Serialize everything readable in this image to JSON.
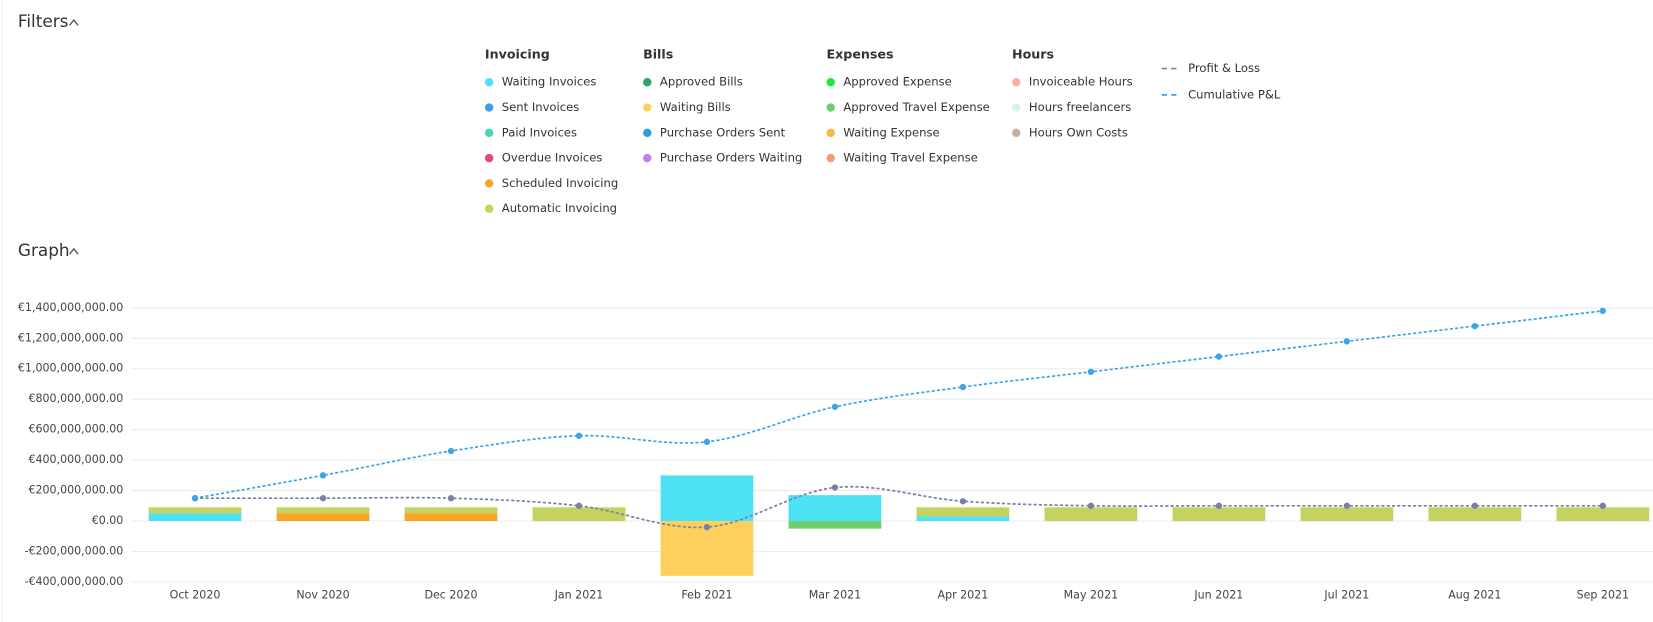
{
  "filters_title": "Filters",
  "graph_title": "Graph",
  "chart_data": {
    "type": "bar",
    "categories": [
      "Oct 2020",
      "Nov 2020",
      "Dec 2020",
      "Jan 2021",
      "Feb 2021",
      "Mar 2021",
      "Apr 2021",
      "May 2021",
      "Jun 2021",
      "Jul 2021",
      "Aug 2021",
      "Sep 2021"
    ],
    "ylim": [
      -400000000,
      1400000000
    ],
    "yticks": [
      {
        "value": -400000000,
        "label": "-€400,000,000.00"
      },
      {
        "value": -200000000,
        "label": "-€200,000,000.00"
      },
      {
        "value": 0,
        "label": "€0.00"
      },
      {
        "value": 200000000,
        "label": "€200,000,000.00"
      },
      {
        "value": 400000000,
        "label": "€400,000,000.00"
      },
      {
        "value": 600000000,
        "label": "€600,000,000.00"
      },
      {
        "value": 800000000,
        "label": "€800,000,000.00"
      },
      {
        "value": 1000000000,
        "label": "€1,000,000,000.00"
      },
      {
        "value": 1200000000,
        "label": "€1,200,000,000.00"
      },
      {
        "value": 1400000000,
        "label": "€1,400,000,000.00"
      }
    ],
    "grid": true,
    "legend_groups": [
      {
        "title": "Invoicing",
        "series": [
          {
            "name": "Waiting Invoices",
            "color": "#4de3f5",
            "values": [
              50000000,
              0,
              0,
              0,
              300000000,
              170000000,
              30000000,
              0,
              0,
              0,
              0,
              0
            ]
          },
          {
            "name": "Sent Invoices",
            "color": "#3a9ff0"
          },
          {
            "name": "Paid Invoices",
            "color": "#45d6b5"
          },
          {
            "name": "Overdue Invoices",
            "color": "#e8467f"
          },
          {
            "name": "Scheduled Invoicing",
            "color": "#f5a623",
            "values": [
              0,
              50000000,
              50000000,
              0,
              0,
              0,
              0,
              0,
              0,
              0,
              0,
              0
            ]
          },
          {
            "name": "Automatic Invoicing",
            "color": "#c5d261",
            "values": [
              40000000,
              40000000,
              40000000,
              90000000,
              0,
              0,
              60000000,
              90000000,
              90000000,
              90000000,
              90000000,
              90000000
            ]
          }
        ]
      },
      {
        "title": "Bills",
        "series": [
          {
            "name": "Approved Bills",
            "color": "#2ea36a"
          },
          {
            "name": "Waiting Bills",
            "color": "#fdd05e",
            "values": [
              0,
              0,
              0,
              0,
              -360000000,
              0,
              0,
              0,
              0,
              0,
              0,
              0
            ]
          },
          {
            "name": "Purchase Orders Sent",
            "color": "#2f9be8"
          },
          {
            "name": "Purchase Orders Waiting",
            "color": "#c07ef0"
          }
        ]
      },
      {
        "title": "Expenses",
        "series": [
          {
            "name": "Approved Expense",
            "color": "#1ee83c"
          },
          {
            "name": "Approved Travel Expense",
            "color": "#6fcf6f",
            "values": [
              0,
              0,
              0,
              0,
              0,
              -50000000,
              0,
              0,
              0,
              0,
              0,
              0
            ]
          },
          {
            "name": "Waiting Expense",
            "color": "#f2b94a"
          },
          {
            "name": "Waiting Travel Expense",
            "color": "#f59a80"
          }
        ]
      },
      {
        "title": "Hours",
        "series": [
          {
            "name": "Invoiceable Hours",
            "color": "#f5b3a6"
          },
          {
            "name": "Hours freelancers",
            "color": "#d5f5ea"
          },
          {
            "name": "Hours Own Costs",
            "color": "#c2b1a5"
          }
        ]
      },
      {
        "series": [
          {
            "name": "Profit & Loss",
            "kind": "line",
            "color": "#7b7fa3",
            "values": [
              150000000,
              150000000,
              150000000,
              100000000,
              -40000000,
              220000000,
              130000000,
              100000000,
              100000000,
              100000000,
              100000000,
              100000000
            ]
          },
          {
            "name": "Cumulative P&L",
            "kind": "line",
            "color": "#3fa3e8",
            "values": [
              150000000,
              300000000,
              460000000,
              560000000,
              520000000,
              750000000,
              880000000,
              980000000,
              1080000000,
              1180000000,
              1280000000,
              1380000000
            ]
          }
        ]
      }
    ]
  }
}
